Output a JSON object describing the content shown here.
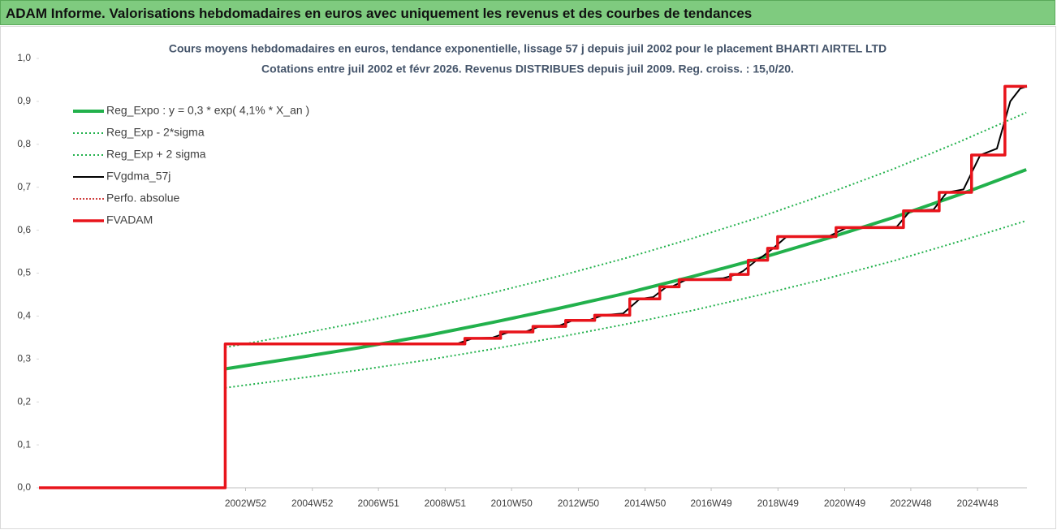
{
  "header": {
    "title": "ADAM Informe. Valorisations hebdomadaires en euros avec uniquement les revenus et des courbes de tendances"
  },
  "chart_data": {
    "type": "line",
    "title": "Cours moyens hebdomadaires en euros, tendance exponentielle, lissage 57 j depuis juil 2002 pour le placement BHARTI AIRTEL LTD",
    "subtitle": "Cotations entre juil 2002 et févr 2026.  Revenus DISTRIBUES depuis juil 2009.  Reg. croiss. : 15,0/20.",
    "xlim": [
      1996.8,
      2026.4
    ],
    "xticks": [
      {
        "value": 2002.99,
        "label": "2002W52"
      },
      {
        "value": 2004.99,
        "label": "2004W52"
      },
      {
        "value": 2006.97,
        "label": "2006W51"
      },
      {
        "value": 2008.97,
        "label": "2008W51"
      },
      {
        "value": 2010.96,
        "label": "2010W50"
      },
      {
        "value": 2012.96,
        "label": "2012W50"
      },
      {
        "value": 2014.96,
        "label": "2014W50"
      },
      {
        "value": 2016.94,
        "label": "2016W49"
      },
      {
        "value": 2018.94,
        "label": "2018W49"
      },
      {
        "value": 2020.94,
        "label": "2020W49"
      },
      {
        "value": 2022.92,
        "label": "2022W48"
      },
      {
        "value": 2024.92,
        "label": "2024W48"
      }
    ],
    "ylim": [
      0,
      1
    ],
    "yticks": [
      {
        "value": 0,
        "label": "0,0"
      },
      {
        "value": 0.1,
        "label": "0,1"
      },
      {
        "value": 0.2,
        "label": "0,2"
      },
      {
        "value": 0.3,
        "label": "0,3"
      },
      {
        "value": 0.4,
        "label": "0,4"
      },
      {
        "value": 0.5,
        "label": "0,5"
      },
      {
        "value": 0.6,
        "label": "0,6"
      },
      {
        "value": 0.7,
        "label": "0,7"
      },
      {
        "value": 0.8,
        "label": "0,8"
      },
      {
        "value": 0.9,
        "label": "0,9"
      },
      {
        "value": 1,
        "label": "1,0"
      }
    ],
    "legend": "upper left",
    "series": [
      {
        "name": "Reg_Expo : y = 0,3 * exp( 4,1% *  X_an )",
        "color": "#22b14c",
        "width": 4,
        "dash": "none",
        "x": [
          2002.38,
          2004.38,
          2006.38,
          2008.38,
          2010.38,
          2012.38,
          2014.38,
          2016.38,
          2018.38,
          2020.38,
          2022.38,
          2024.38,
          2026.38
        ],
        "values": [
          0.277,
          0.301,
          0.326,
          0.354,
          0.385,
          0.418,
          0.453,
          0.492,
          0.534,
          0.58,
          0.629,
          0.683,
          0.741
        ]
      },
      {
        "name": "Reg_Exp - 2*sigma",
        "color": "#22b14c",
        "width": 2,
        "dash": "2 3",
        "x": [
          2002.38,
          2004.38,
          2006.38,
          2008.38,
          2010.38,
          2012.38,
          2014.38,
          2016.38,
          2018.38,
          2020.38,
          2022.38,
          2024.38,
          2026.38
        ],
        "values": [
          0.233,
          0.253,
          0.274,
          0.297,
          0.323,
          0.351,
          0.381,
          0.413,
          0.449,
          0.487,
          0.528,
          0.574,
          0.622
        ]
      },
      {
        "name": "Reg_Exp + 2 sigma",
        "color": "#22b14c",
        "width": 2,
        "dash": "2 3",
        "x": [
          2002.38,
          2004.38,
          2006.38,
          2008.38,
          2010.38,
          2012.38,
          2014.38,
          2016.38,
          2018.38,
          2020.38,
          2022.38,
          2024.38,
          2026.38
        ],
        "values": [
          0.327,
          0.355,
          0.385,
          0.418,
          0.454,
          0.493,
          0.535,
          0.581,
          0.63,
          0.684,
          0.742,
          0.806,
          0.874
        ]
      },
      {
        "name": "FVgdma_57j",
        "color": "#000000",
        "width": 2,
        "dash": "none",
        "x": [
          1996.8,
          2002.38,
          2002.38,
          2009.3,
          2009.8,
          2010.4,
          2010.9,
          2011.4,
          2011.8,
          2012.4,
          2012.8,
          2013.3,
          2013.7,
          2014.3,
          2014.8,
          2015.2,
          2015.6,
          2015.8,
          2016.2,
          2017.3,
          2017.7,
          2017.9,
          2018.3,
          2018.5,
          2018.8,
          2019.2,
          2020.5,
          2021.0,
          2022.5,
          2022.9,
          2023.6,
          2024.0,
          2024.5,
          2025.0,
          2025.5,
          2025.9,
          2026.2,
          2026.4
        ],
        "values": [
          0,
          0,
          0.335,
          0.335,
          0.348,
          0.35,
          0.363,
          0.364,
          0.376,
          0.378,
          0.39,
          0.391,
          0.402,
          0.406,
          0.44,
          0.444,
          0.468,
          0.47,
          0.485,
          0.488,
          0.497,
          0.505,
          0.53,
          0.54,
          0.558,
          0.585,
          0.587,
          0.606,
          0.608,
          0.645,
          0.648,
          0.688,
          0.695,
          0.775,
          0.79,
          0.9,
          0.93,
          0.935
        ]
      },
      {
        "name": "Perfo. absolue",
        "color": "#c00000",
        "width": 1.5,
        "dash": "2 2",
        "x": [
          1996.8,
          2002.38,
          2002.38,
          2009.56,
          2009.56,
          2010.63,
          2010.63,
          2011.6,
          2011.6,
          2012.58,
          2012.58,
          2013.45,
          2013.45,
          2014.5,
          2014.5,
          2015.4,
          2015.4,
          2015.98,
          2015.98,
          2017.52,
          2017.52,
          2018.05,
          2018.05,
          2018.63,
          2018.63,
          2018.93,
          2018.93,
          2020.68,
          2020.68,
          2022.7,
          2022.7,
          2023.77,
          2023.77,
          2024.74,
          2024.74,
          2025.74,
          2025.74,
          2026.4
        ],
        "values": [
          0,
          0,
          0.335,
          0.335,
          0.348,
          0.348,
          0.363,
          0.363,
          0.376,
          0.376,
          0.39,
          0.39,
          0.402,
          0.402,
          0.44,
          0.44,
          0.468,
          0.468,
          0.485,
          0.485,
          0.497,
          0.497,
          0.53,
          0.53,
          0.558,
          0.558,
          0.585,
          0.585,
          0.606,
          0.606,
          0.645,
          0.645,
          0.688,
          0.688,
          0.775,
          0.775,
          0.935,
          0.935
        ]
      },
      {
        "name": "FVADAM",
        "color": "#e8141b",
        "width": 3.5,
        "dash": "none",
        "x": [
          1996.8,
          2002.38,
          2002.38,
          2009.56,
          2009.56,
          2010.63,
          2010.63,
          2011.6,
          2011.6,
          2012.58,
          2012.58,
          2013.45,
          2013.45,
          2014.5,
          2014.5,
          2015.4,
          2015.4,
          2015.98,
          2015.98,
          2017.52,
          2017.52,
          2018.05,
          2018.05,
          2018.63,
          2018.63,
          2018.93,
          2018.93,
          2020.68,
          2020.68,
          2022.7,
          2022.7,
          2023.77,
          2023.77,
          2024.74,
          2024.74,
          2025.74,
          2025.74,
          2026.4
        ],
        "values": [
          0,
          0,
          0.335,
          0.335,
          0.348,
          0.348,
          0.363,
          0.363,
          0.376,
          0.376,
          0.39,
          0.39,
          0.402,
          0.402,
          0.44,
          0.44,
          0.468,
          0.468,
          0.485,
          0.485,
          0.497,
          0.497,
          0.53,
          0.53,
          0.558,
          0.558,
          0.585,
          0.585,
          0.606,
          0.606,
          0.645,
          0.645,
          0.688,
          0.688,
          0.775,
          0.775,
          0.935,
          0.935
        ]
      }
    ]
  }
}
